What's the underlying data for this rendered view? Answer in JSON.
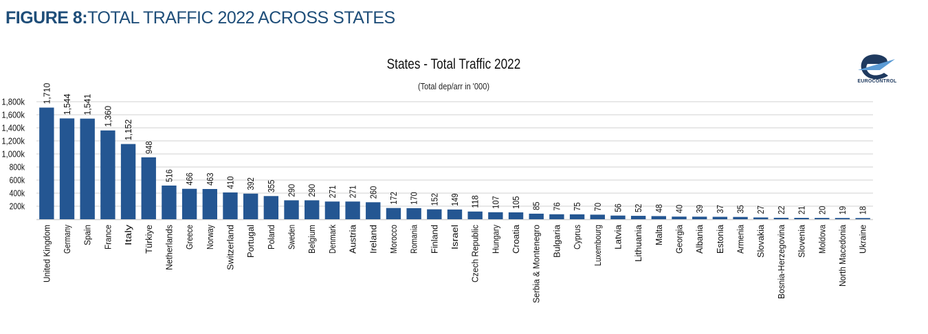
{
  "figure": {
    "title_bold": "FIGURE 8:",
    "title_light": "TOTAL TRAFFIC 2022 ACROSS STATES"
  },
  "logo": {
    "text": "EUROCONTROL",
    "icon": "eurocontrol-logo-icon"
  },
  "colors": {
    "bar": "#245692",
    "title": "#1f4e79",
    "grid": "#d9d9d9"
  },
  "chart_data": {
    "type": "bar",
    "title": "States - Total Traffic 2022",
    "subtitle": "(Total dep/arr in '000)",
    "xlabel": "",
    "ylabel": "",
    "ylim": [
      0,
      1800
    ],
    "grid": true,
    "legend": "none",
    "yticks": [
      200,
      400,
      600,
      800,
      1000,
      1200,
      1400,
      1600,
      1800
    ],
    "ytick_labels": [
      "200k",
      "400k",
      "600k",
      "800k",
      "1,000k",
      "1,200k",
      "1,400k",
      "1,600k",
      "1,800k"
    ],
    "categories": [
      "United Kingdom",
      "Germany",
      "Spain",
      "France",
      "Italy",
      "Türkiye",
      "Netherlands",
      "Greece",
      "Norway",
      "Switzerland",
      "Portugal",
      "Poland",
      "Sweden",
      "Belgium",
      "Denmark",
      "Austria",
      "Ireland",
      "Morocco",
      "Romania",
      "Finland",
      "Israel",
      "Czech Republic",
      "Hungary",
      "Croatia",
      "Serbia & Montenegro",
      "Bulgaria",
      "Cyprus",
      "Luxembourg",
      "Latvia",
      "Lithuania",
      "Malta",
      "Georgia",
      "Albania",
      "Estonia",
      "Armenia",
      "Slovakia",
      "Bosnia-Herzegovina",
      "Slovenia",
      "Moldova",
      "North Macedonia",
      "Ukraine"
    ],
    "values": [
      1710,
      1544,
      1541,
      1360,
      1152,
      948,
      516,
      466,
      463,
      410,
      392,
      355,
      290,
      290,
      271,
      271,
      260,
      172,
      170,
      152,
      149,
      118,
      107,
      105,
      85,
      76,
      75,
      70,
      56,
      52,
      48,
      40,
      39,
      37,
      35,
      27,
      22,
      21,
      20,
      19,
      18
    ],
    "value_labels": [
      "1,710",
      "1,544",
      "1,541",
      "1,360",
      "1,152",
      "948",
      "516",
      "466",
      "463",
      "410",
      "392",
      "355",
      "290",
      "290",
      "271",
      "271",
      "260",
      "172",
      "170",
      "152",
      "149",
      "118",
      "107",
      "105",
      "85",
      "76",
      "75",
      "70",
      "56",
      "52",
      "48",
      "40",
      "39",
      "37",
      "35",
      "27",
      "22",
      "21",
      "20",
      "19",
      "18"
    ]
  }
}
